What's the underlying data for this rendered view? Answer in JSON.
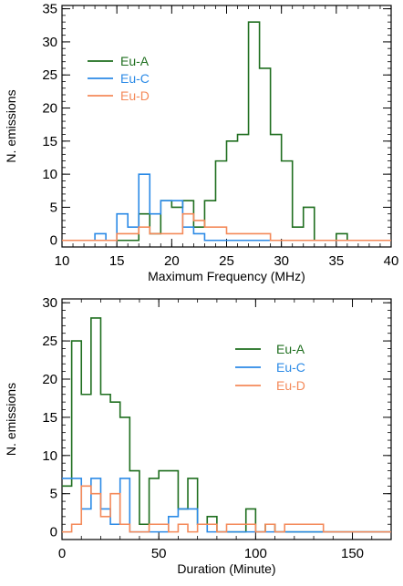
{
  "chart_data": [
    {
      "type": "line",
      "title": "",
      "xlabel": "Maximum Frequency (MHz)",
      "ylabel": "N. emissions",
      "xlim": [
        10,
        40
      ],
      "ylim": [
        -1,
        35.5
      ],
      "xticks": [
        10,
        15,
        20,
        25,
        30,
        35,
        40
      ],
      "yticks": [
        0,
        5,
        10,
        15,
        20,
        25,
        30,
        35
      ],
      "bin_width": 1,
      "bin_start": 10,
      "grid": false,
      "legend_position": "upper-left",
      "series": [
        {
          "name": "Eu-A",
          "color": "#1e6e1e",
          "values": [
            0,
            0,
            0,
            0,
            0,
            0,
            0,
            4,
            1,
            6,
            5,
            6,
            2,
            6,
            12,
            15,
            16,
            33,
            26,
            16,
            12,
            2,
            5,
            0,
            0,
            1,
            0,
            0,
            0,
            0
          ]
        },
        {
          "name": "Eu-C",
          "color": "#2b8ae6",
          "values": [
            0,
            0,
            0,
            1,
            0,
            4,
            2,
            10,
            4,
            6,
            6,
            2,
            1,
            0,
            0,
            0,
            0,
            0,
            0,
            0,
            0,
            0,
            0,
            0,
            0,
            0,
            0,
            0,
            0,
            0
          ]
        },
        {
          "name": "Eu-D",
          "color": "#f48a5a",
          "values": [
            0,
            0,
            0,
            0,
            0,
            1,
            1,
            2,
            1,
            1,
            1,
            4,
            3,
            2,
            2,
            1,
            1,
            1,
            1,
            0,
            0,
            0,
            0,
            0,
            0,
            0,
            0,
            0,
            0,
            0
          ]
        }
      ]
    },
    {
      "type": "line",
      "title": "",
      "xlabel": "Duration (Minute)",
      "ylabel": "N. emissions",
      "xlim": [
        0,
        170
      ],
      "ylim": [
        -1,
        30.5
      ],
      "xticks": [
        0,
        50,
        100,
        150
      ],
      "yticks": [
        0,
        5,
        10,
        15,
        20,
        25,
        30
      ],
      "bin_width": 5,
      "bin_start": 0,
      "grid": false,
      "legend_position": "center-right",
      "series": [
        {
          "name": "Eu-A",
          "color": "#1e6e1e",
          "values": [
            6,
            25,
            18,
            28,
            18,
            17,
            15,
            8,
            1,
            7,
            8,
            8,
            3,
            7,
            1,
            2,
            0,
            0,
            0,
            3,
            0,
            1,
            0,
            0,
            0,
            0,
            0,
            0,
            0,
            0,
            0,
            0,
            0,
            0
          ]
        },
        {
          "name": "Eu-C",
          "color": "#2b8ae6",
          "values": [
            7,
            7,
            3,
            7,
            3,
            1,
            7,
            0,
            0,
            0,
            0,
            2,
            3,
            3,
            1,
            0,
            0,
            0,
            0,
            0,
            0,
            0,
            0,
            0,
            0,
            0,
            0,
            0,
            0,
            0,
            0,
            0,
            0,
            0
          ]
        },
        {
          "name": "Eu-D",
          "color": "#f48a5a",
          "values": [
            0,
            1,
            6,
            5,
            2,
            5,
            1,
            0,
            0,
            1,
            1,
            0,
            1,
            0,
            1,
            1,
            0,
            1,
            1,
            1,
            0,
            1,
            0,
            1,
            1,
            1,
            1,
            0,
            0,
            0,
            0,
            0,
            0,
            0
          ]
        }
      ]
    }
  ]
}
